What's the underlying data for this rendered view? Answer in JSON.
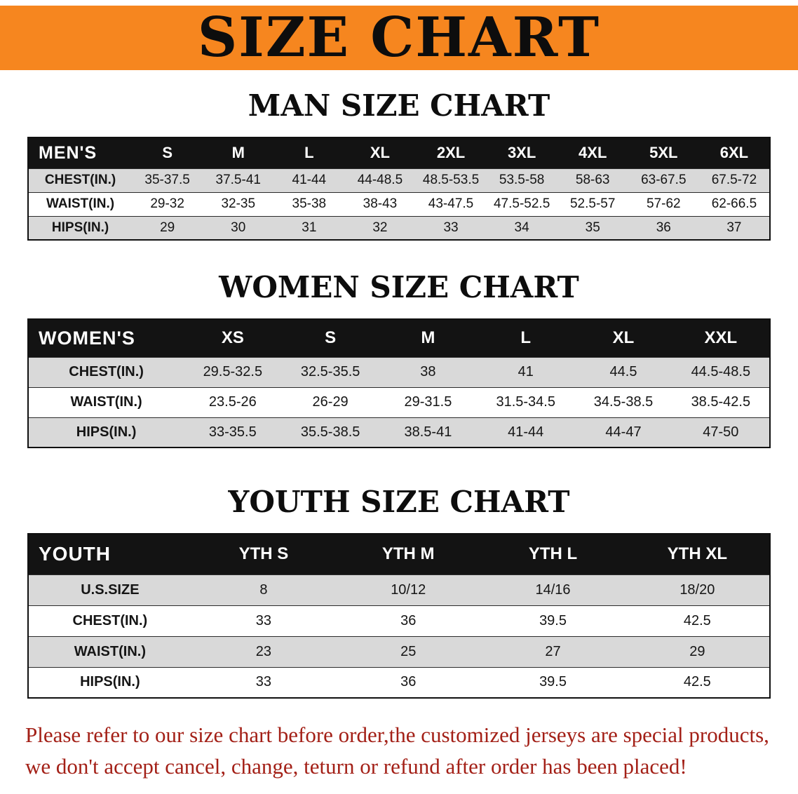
{
  "colors": {
    "banner_bg": "#F6861F",
    "table_header_bg": "#131313",
    "row_alt_bg": "#D9D9D9",
    "disclaimer_color": "#A32017",
    "text_color": "#111111"
  },
  "banner": {
    "title": "SIZE CHART"
  },
  "men": {
    "heading": "MAN SIZE CHART",
    "table": {
      "header": [
        "MEN'S",
        "S",
        "M",
        "L",
        "XL",
        "2XL",
        "3XL",
        "4XL",
        "5XL",
        "6XL"
      ],
      "rows": [
        {
          "label": "CHEST(IN.)",
          "values": [
            "35-37.5",
            "37.5-41",
            "41-44",
            "44-48.5",
            "48.5-53.5",
            "53.5-58",
            "58-63",
            "63-67.5",
            "67.5-72"
          ]
        },
        {
          "label": "WAIST(IN.)",
          "values": [
            "29-32",
            "32-35",
            "35-38",
            "38-43",
            "43-47.5",
            "47.5-52.5",
            "52.5-57",
            "57-62",
            "62-66.5"
          ]
        },
        {
          "label": "HIPS(IN.)",
          "values": [
            "29",
            "30",
            "31",
            "32",
            "33",
            "34",
            "35",
            "36",
            "37"
          ]
        }
      ]
    }
  },
  "women": {
    "heading": "WOMEN SIZE CHART",
    "table": {
      "header": [
        "WOMEN'S",
        "XS",
        "S",
        "M",
        "L",
        "XL",
        "XXL"
      ],
      "rows": [
        {
          "label": "CHEST(IN.)",
          "values": [
            "29.5-32.5",
            "32.5-35.5",
            "38",
            "41",
            "44.5",
            "44.5-48.5"
          ]
        },
        {
          "label": "WAIST(IN.)",
          "values": [
            "23.5-26",
            "26-29",
            "29-31.5",
            "31.5-34.5",
            "34.5-38.5",
            "38.5-42.5"
          ]
        },
        {
          "label": "HIPS(IN.)",
          "values": [
            "33-35.5",
            "35.5-38.5",
            "38.5-41",
            "41-44",
            "44-47",
            "47-50"
          ]
        }
      ]
    }
  },
  "youth": {
    "heading": "YOUTH SIZE CHART",
    "table": {
      "header": [
        "YOUTH",
        "YTH S",
        "YTH M",
        "YTH L",
        "YTH XL"
      ],
      "rows": [
        {
          "label": "U.S.SIZE",
          "values": [
            "8",
            "10/12",
            "14/16",
            "18/20"
          ]
        },
        {
          "label": "CHEST(IN.)",
          "values": [
            "33",
            "36",
            "39.5",
            "42.5"
          ]
        },
        {
          "label": "WAIST(IN.)",
          "values": [
            "23",
            "25",
            "27",
            "29"
          ]
        },
        {
          "label": "HIPS(IN.)",
          "values": [
            "33",
            "36",
            "39.5",
            "42.5"
          ]
        }
      ]
    }
  },
  "disclaimer": {
    "line1": "Please refer to our size chart before order,the customized jerseys are special products,",
    "line2": "we don't accept cancel, change, teturn or refund after order has been placed!"
  }
}
